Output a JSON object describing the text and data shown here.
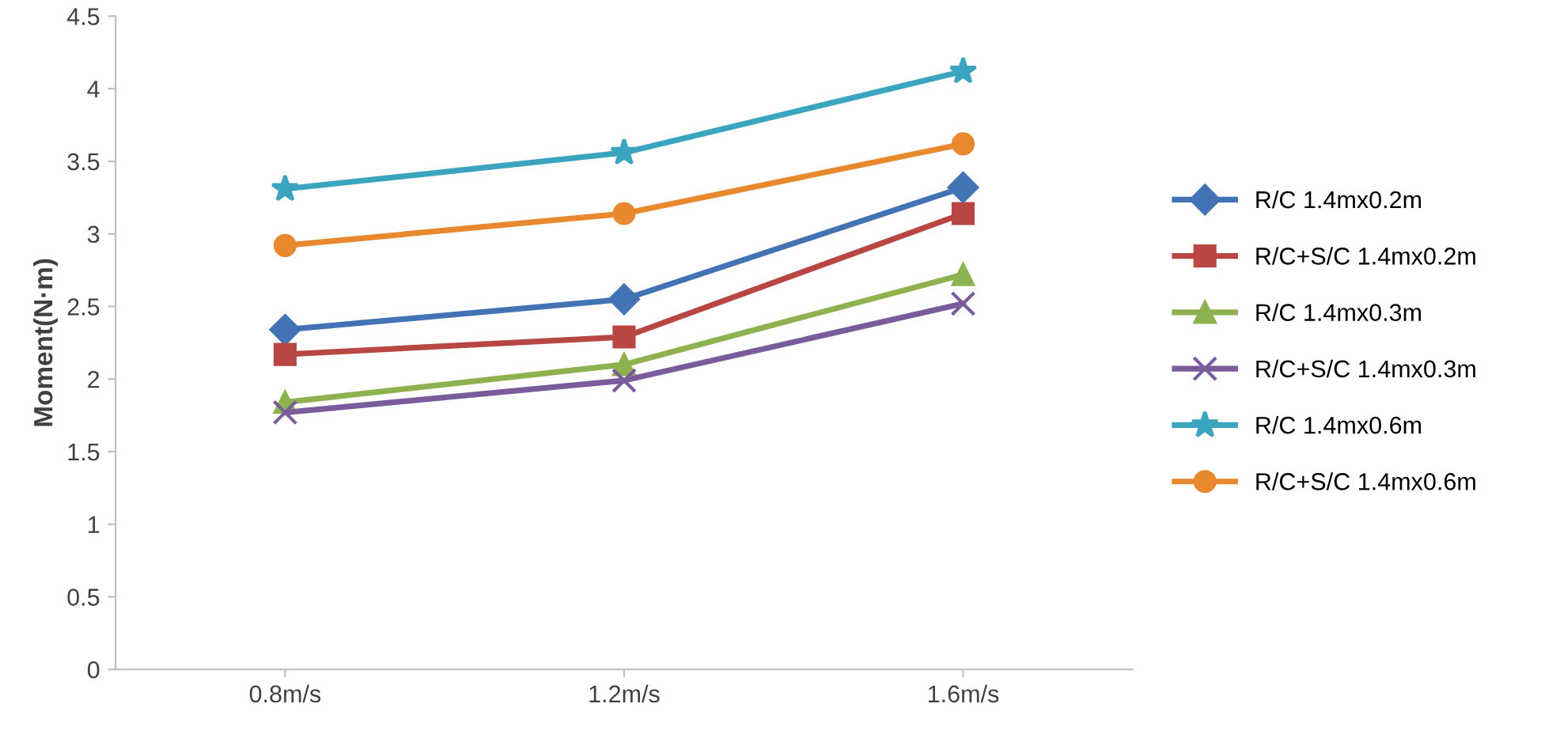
{
  "chart_data": {
    "type": "line",
    "ylabel": "Moment(N·m)",
    "categories": [
      "0.8m/s",
      "1.2m/s",
      "1.6m/s"
    ],
    "series": [
      {
        "name": "R/C 1.4mx0.2m",
        "color": "#4473b5",
        "marker": "diamond",
        "values": [
          2.34,
          2.55,
          3.32
        ]
      },
      {
        "name": "R/C+S/C 1.4mx0.2m",
        "color": "#b84643",
        "marker": "square",
        "values": [
          2.17,
          2.29,
          3.14
        ]
      },
      {
        "name": "R/C 1.4mx0.3m",
        "color": "#8db24f",
        "marker": "triangle",
        "values": [
          1.84,
          2.1,
          2.72
        ]
      },
      {
        "name": "R/C+S/C 1.4mx0.3m",
        "color": "#7a5c9c",
        "marker": "cross",
        "values": [
          1.77,
          1.99,
          2.52
        ]
      },
      {
        "name": "R/C 1.4mx0.6m",
        "color": "#3ba4bf",
        "marker": "star",
        "values": [
          3.31,
          3.56,
          4.12
        ]
      },
      {
        "name": "R/C+S/C 1.4mx0.6m",
        "color": "#e8892f",
        "marker": "circle",
        "values": [
          2.92,
          3.14,
          3.62
        ]
      }
    ],
    "ylim": [
      0,
      4.5
    ],
    "yticks": [
      0,
      0.5,
      1,
      1.5,
      2,
      2.5,
      3,
      3.5,
      4,
      4.5
    ],
    "grid": false,
    "legend": "right",
    "line_style": "solid"
  }
}
